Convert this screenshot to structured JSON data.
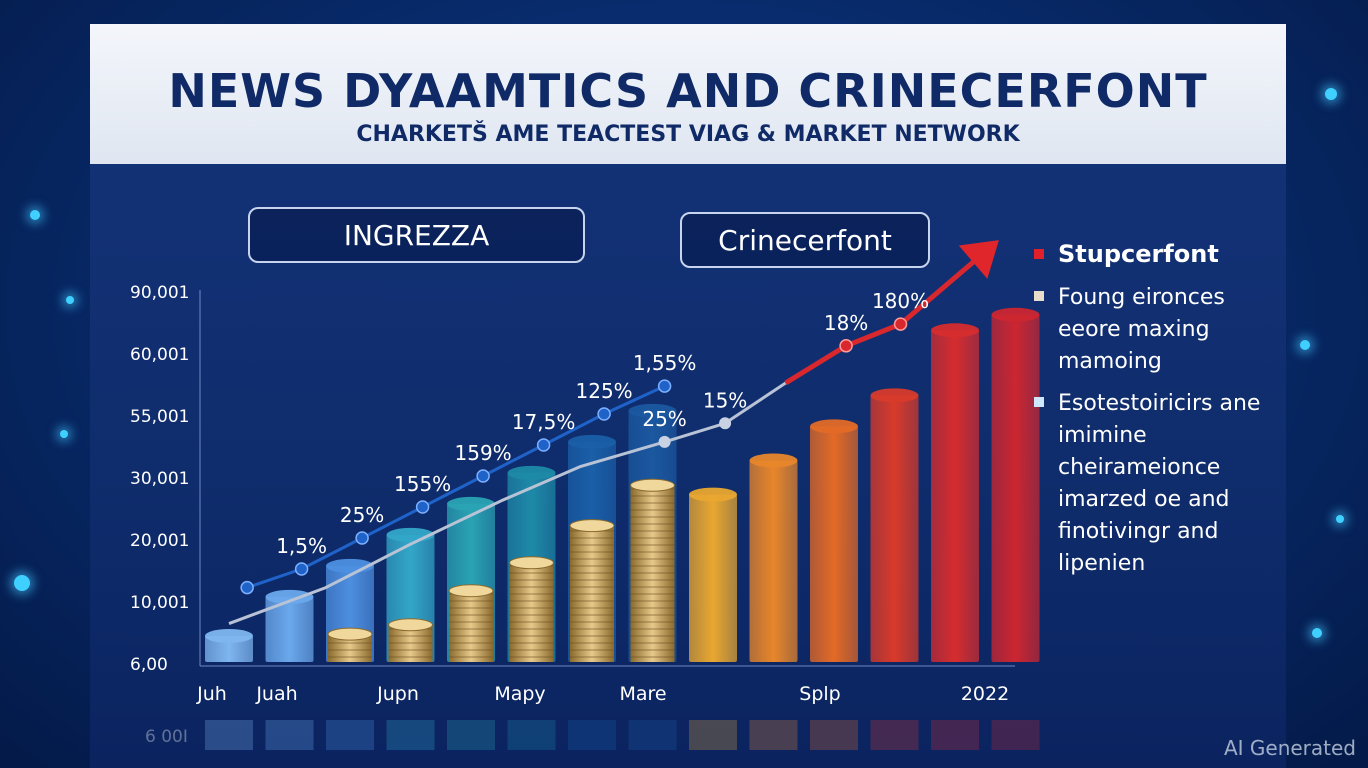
{
  "header": {
    "title": "NEWS DYAAMTICS  AND CRINECERFONT",
    "subtitle": "CHARKETŠ AME TEACTEST VIAǤ & MARKET NETWORK"
  },
  "pills": [
    "INGREZZA",
    "Crinecerfont"
  ],
  "legend": [
    {
      "text": "Stupcerfont",
      "color": "#e0202a",
      "heading": true
    },
    {
      "text": "Foung eironces eeore maxing mamoing",
      "color": "#e8dccb",
      "heading": false
    },
    {
      "text": "Esotestoiricirs ane imimine cheirameionce imarzed oe and finotivingr and lipenien",
      "color": "#cfe6ff",
      "heading": false
    }
  ],
  "watermark": "AI Generated",
  "chart_data": {
    "type": "bar",
    "y_tick_labels": [
      "6,00",
      "10,001",
      "20,001",
      "30,001",
      "55,001",
      "60,001",
      "90,001"
    ],
    "x_tick_labels": [
      "Juh",
      "Juah",
      "Jupn",
      "Mapy",
      "Mare",
      "Splp",
      "2022"
    ],
    "reflection_label": "6 00I",
    "bars": [
      {
        "value": 0.42,
        "color": "#7fb6f0"
      },
      {
        "value": 1.05,
        "color": "#6aa8ec"
      },
      {
        "value": 1.55,
        "color": "#4d8fe0"
      },
      {
        "value": 2.05,
        "color": "#33a7c8"
      },
      {
        "value": 2.55,
        "color": "#2aa3b4"
      },
      {
        "value": 3.05,
        "color": "#1e8aa8"
      },
      {
        "value": 3.55,
        "color": "#1a5fa8"
      },
      {
        "value": 4.05,
        "color": "#1b58a0"
      },
      {
        "value": 2.7,
        "color": "#e9a730"
      },
      {
        "value": 3.25,
        "color": "#e8862a"
      },
      {
        "value": 3.8,
        "color": "#e36a26"
      },
      {
        "value": 4.3,
        "color": "#d83a2a"
      },
      {
        "value": 5.35,
        "color": "#d62c2e"
      },
      {
        "value": 5.6,
        "color": "#cc2630"
      }
    ],
    "coin_stacks": [
      {
        "bar": 2,
        "value": 0.45
      },
      {
        "bar": 3,
        "value": 0.6
      },
      {
        "bar": 4,
        "value": 1.15
      },
      {
        "bar": 5,
        "value": 1.6
      },
      {
        "bar": 6,
        "value": 2.2
      },
      {
        "bar": 7,
        "value": 2.85
      }
    ],
    "series": [
      {
        "style": "blue-line",
        "points": [
          [
            0.3,
            1.2
          ],
          [
            1.2,
            1.5
          ],
          [
            2.2,
            2.0
          ],
          [
            3.2,
            2.5
          ],
          [
            4.2,
            3.0
          ],
          [
            5.2,
            3.5
          ],
          [
            6.2,
            4.0
          ],
          [
            7.2,
            4.45
          ]
        ],
        "labels": [
          "",
          "1,5%",
          "25%",
          "155%",
          "159%",
          "17,5%",
          "125%",
          "1,55%"
        ]
      },
      {
        "style": "grey-line",
        "points": [
          [
            0,
            0.62
          ],
          [
            1.6,
            1.2
          ],
          [
            3.0,
            1.9
          ],
          [
            4.5,
            2.6
          ],
          [
            5.8,
            3.15
          ],
          [
            7.2,
            3.55
          ],
          [
            8.2,
            3.85
          ],
          [
            9.2,
            4.5
          ]
        ],
        "labels": [
          "",
          "",
          "",
          "",
          "",
          "25%",
          "15%",
          ""
        ],
        "label_points": [
          5,
          6
        ]
      },
      {
        "style": "red-arrow",
        "points": [
          [
            9.2,
            4.5
          ],
          [
            10.2,
            5.1
          ],
          [
            11.1,
            5.45
          ],
          [
            12.6,
            6.7
          ]
        ],
        "labels": [
          "",
          "18%",
          "180%",
          ""
        ]
      }
    ]
  }
}
